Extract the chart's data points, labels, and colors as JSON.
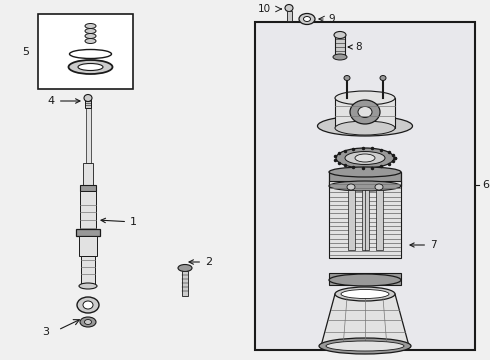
{
  "bg_color": "#f0f0f0",
  "line_color": "#1a1a1a",
  "light_line": "#777777",
  "fill_light": "#cccccc",
  "fill_lighter": "#e2e2e2",
  "fill_mid": "#999999",
  "fill_dark": "#555555",
  "box_fill": "#e8e8ec",
  "white": "#ffffff"
}
